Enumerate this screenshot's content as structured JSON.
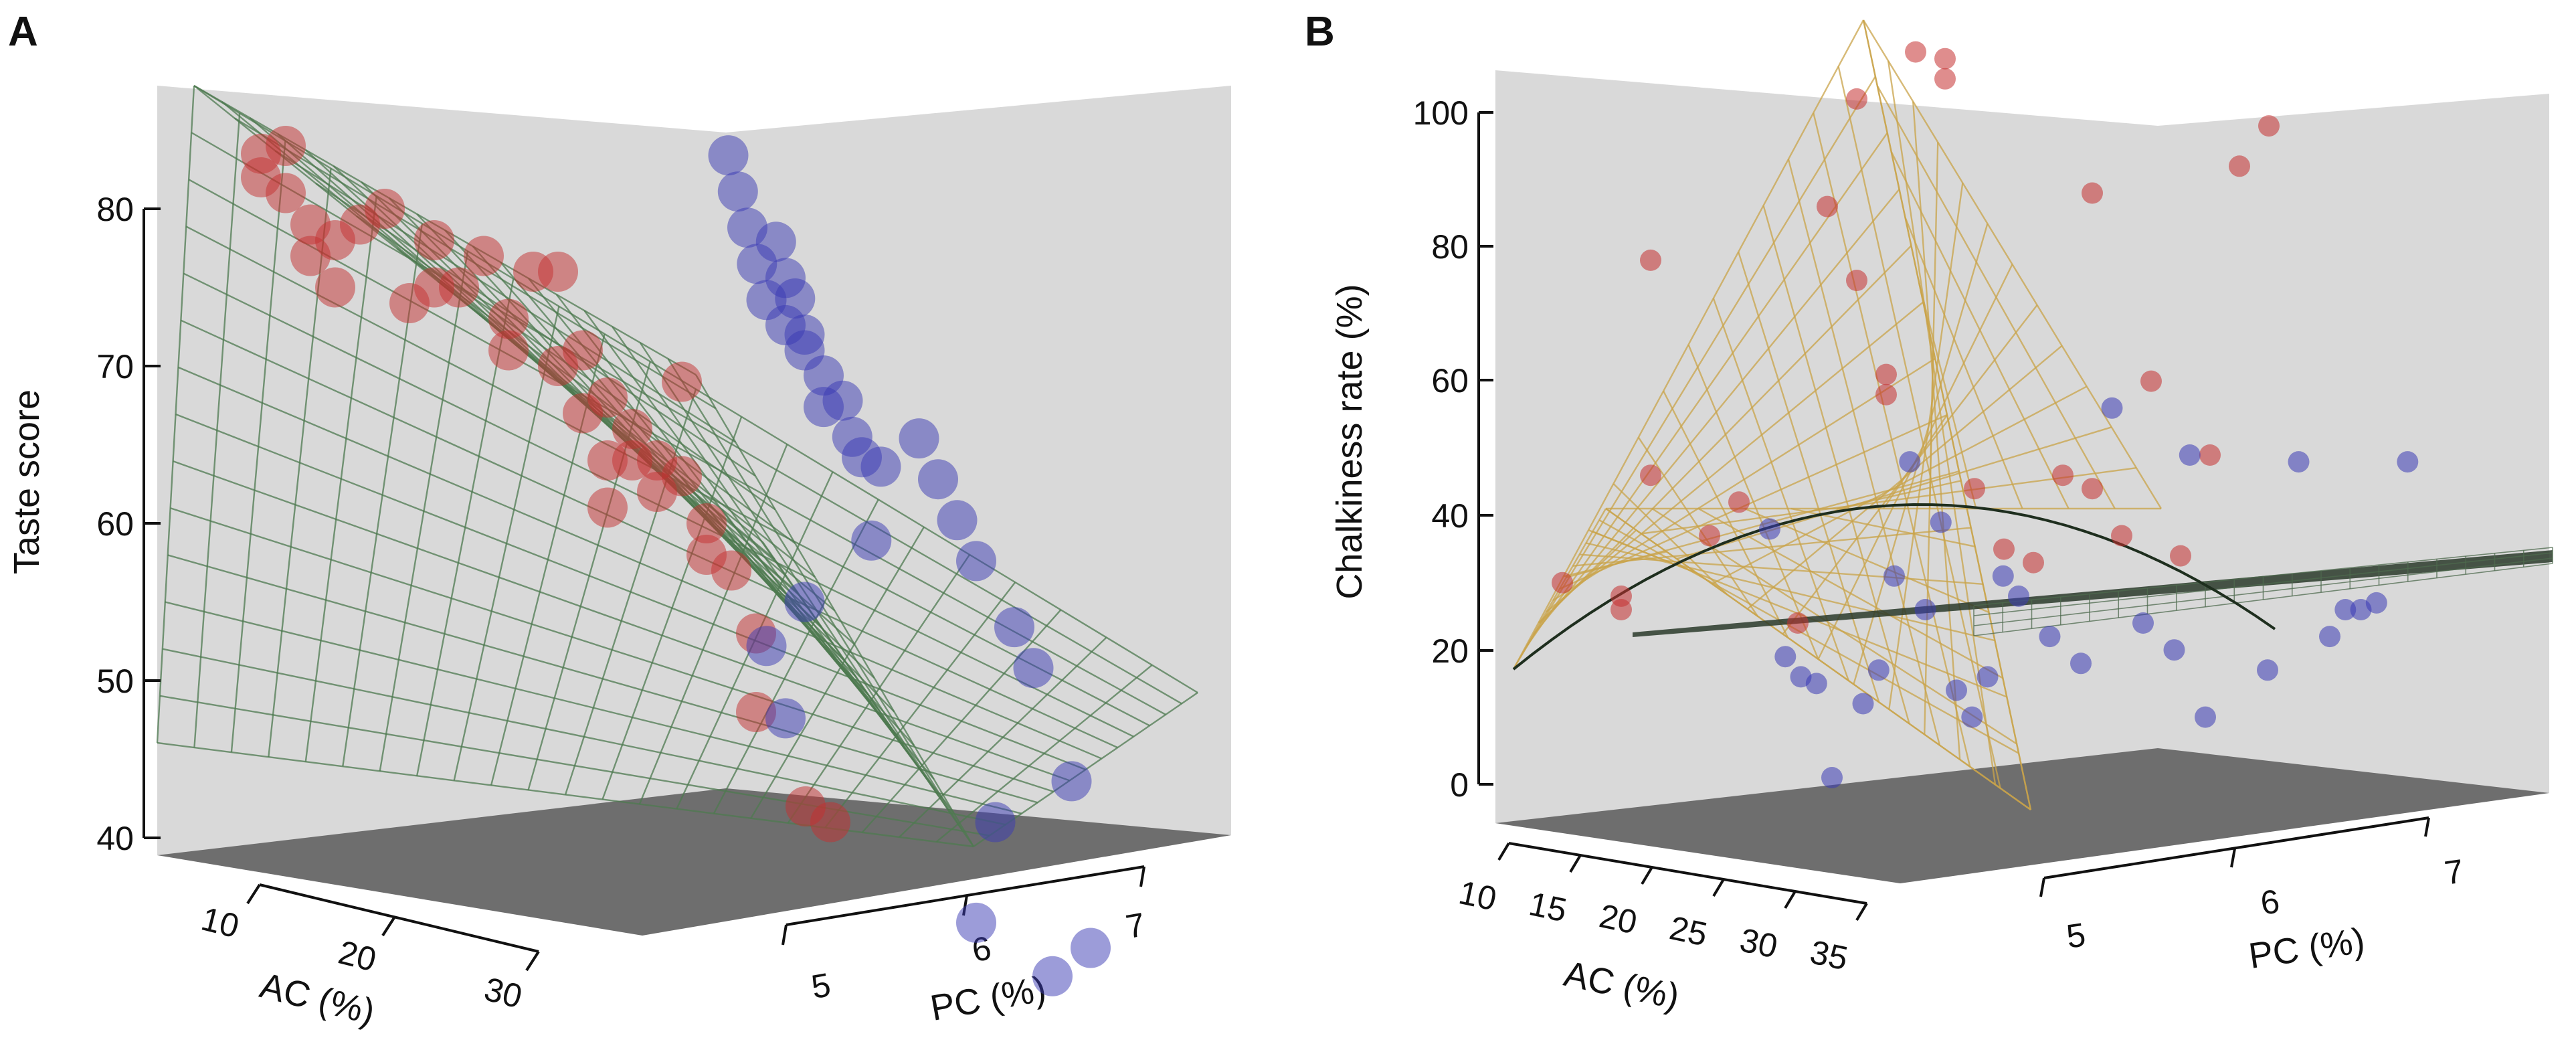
{
  "colors": {
    "wall": "#d9d9d9",
    "floor": "#6e6e6e",
    "red_points": "#c43030",
    "blue_points": "#3a3ab4",
    "mesh_green": "#4e7a50",
    "mesh_gold": "#caa44a",
    "axis": "#111111"
  },
  "chart_data": [
    {
      "panel": "A",
      "type": "scatter",
      "zlabel": "Taste score",
      "xlabel": "AC (%)",
      "ylabel": "PC (%)",
      "z_ticks": [
        "80",
        "70",
        "60",
        "50",
        "40"
      ],
      "ac_ticks": [
        "10",
        "20",
        "30"
      ],
      "pc_ticks": [
        "5",
        "6",
        "7"
      ],
      "series": [
        {
          "name": "red",
          "color": "red_points",
          "points": [
            [
              8,
              82
            ],
            [
              8,
              83.5
            ],
            [
              9,
              84
            ],
            [
              9,
              81
            ],
            [
              10,
              79
            ],
            [
              10,
              77
            ],
            [
              11,
              75
            ],
            [
              11,
              78
            ],
            [
              12,
              79
            ],
            [
              13,
              80
            ],
            [
              14,
              74
            ],
            [
              15,
              78
            ],
            [
              15,
              75
            ],
            [
              16,
              75
            ],
            [
              17,
              77
            ],
            [
              18,
              73
            ],
            [
              18,
              71
            ],
            [
              19,
              76
            ],
            [
              20,
              76
            ],
            [
              20,
              70
            ],
            [
              21,
              71
            ],
            [
              21,
              67
            ],
            [
              22,
              68
            ],
            [
              22,
              64
            ],
            [
              22,
              61
            ],
            [
              23,
              66
            ],
            [
              23,
              64
            ],
            [
              24,
              64
            ],
            [
              24,
              62
            ],
            [
              25,
              69
            ],
            [
              25,
              63
            ],
            [
              26,
              60
            ],
            [
              26,
              58
            ],
            [
              27,
              57
            ],
            [
              28,
              53
            ],
            [
              28,
              48
            ],
            [
              30,
              42
            ],
            [
              31,
              41
            ]
          ]
        },
        {
          "name": "blue",
          "color": "blue_points",
          "points": [
            [
              5.1,
              84
            ],
            [
              5.15,
              82
            ],
            [
              5.2,
              80
            ],
            [
              5.25,
              78
            ],
            [
              5.3,
              76
            ],
            [
              5.35,
              80
            ],
            [
              5.4,
              75
            ],
            [
              5.4,
              78
            ],
            [
              5.45,
              77
            ],
            [
              5.5,
              74
            ],
            [
              5.5,
              75
            ],
            [
              5.6,
              73
            ],
            [
              5.6,
              71
            ],
            [
              5.7,
              72
            ],
            [
              5.75,
              70
            ],
            [
              5.8,
              69
            ],
            [
              5.85,
              64
            ],
            [
              5.9,
              69
            ],
            [
              5.3,
              54
            ],
            [
              5.4,
              50
            ],
            [
              5.5,
              58
            ],
            [
              6.1,
              72
            ],
            [
              6.2,
              70
            ],
            [
              6.3,
              68
            ],
            [
              6.4,
              66
            ],
            [
              6.6,
              63
            ],
            [
              6.7,
              61
            ],
            [
              6.9,
              55
            ],
            [
              6.5,
              50
            ],
            [
              7.0,
              45
            ],
            [
              6.4,
              43
            ],
            [
              6.8,
              42
            ]
          ]
        }
      ]
    },
    {
      "panel": "B",
      "type": "scatter",
      "zlabel": "Chalkiness rate (%)",
      "xlabel": "AC (%)",
      "ylabel": "PC (%)",
      "z_ticks": [
        "100",
        "80",
        "60",
        "40",
        "20",
        "0"
      ],
      "ac_ticks": [
        "10",
        "15",
        "20",
        "25",
        "30",
        "35"
      ],
      "pc_ticks": [
        "5",
        "6",
        "7"
      ],
      "series": [
        {
          "name": "red",
          "color": "red_points",
          "points": [
            [
              10,
              30
            ],
            [
              12,
              24
            ],
            [
              12,
              26
            ],
            [
              13,
              43
            ],
            [
              13,
              75
            ],
            [
              15,
              32
            ],
            [
              16,
              36
            ],
            [
              18,
              16
            ],
            [
              19,
              77
            ],
            [
              20,
              92
            ],
            [
              20,
              65
            ],
            [
              21,
              47
            ],
            [
              21,
              50
            ],
            [
              22,
              97
            ],
            [
              23,
              92
            ],
            [
              23,
              95
            ],
            [
              24,
              30
            ],
            [
              25,
              20
            ],
            [
              26,
              17
            ],
            [
              27,
              29
            ],
            [
              28,
              26
            ],
            [
              28,
              70
            ],
            [
              29,
              18
            ],
            [
              30,
              40
            ],
            [
              31,
              13
            ],
            [
              32,
              27
            ],
            [
              33,
              69
            ],
            [
              34,
              74
            ]
          ]
        },
        {
          "name": "blue",
          "color": "blue_points",
          "points": [
            [
              5.0,
              38
            ],
            [
              5.05,
              19
            ],
            [
              5.1,
              16
            ],
            [
              5.15,
              15
            ],
            [
              5.2,
              1
            ],
            [
              5.3,
              12
            ],
            [
              5.35,
              17
            ],
            [
              5.4,
              31
            ],
            [
              5.45,
              48
            ],
            [
              5.5,
              26
            ],
            [
              5.55,
              39
            ],
            [
              5.6,
              14
            ],
            [
              5.65,
              10
            ],
            [
              5.7,
              16
            ],
            [
              5.75,
              31
            ],
            [
              5.8,
              28
            ],
            [
              5.9,
              22
            ],
            [
              6.0,
              18
            ],
            [
              6.1,
              56
            ],
            [
              6.2,
              24
            ],
            [
              6.3,
              20
            ],
            [
              6.35,
              49
            ],
            [
              6.4,
              10
            ],
            [
              6.6,
              17
            ],
            [
              6.7,
              48
            ],
            [
              6.8,
              22
            ],
            [
              6.85,
              26
            ],
            [
              6.95,
              27
            ],
            [
              7.05,
              48
            ],
            [
              6.9,
              26
            ]
          ]
        }
      ]
    }
  ]
}
